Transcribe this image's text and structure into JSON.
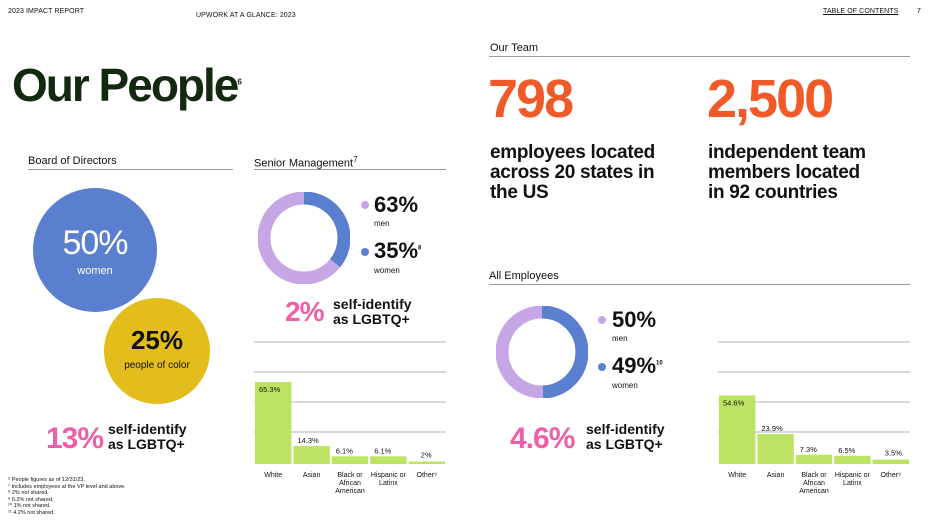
{
  "header": {
    "report": "2023 IMPACT REPORT",
    "section": "UPWORK AT A GLANCE: 2023",
    "toc": "TABLE OF CONTENTS",
    "page": "7"
  },
  "title": {
    "text": "Our People",
    "sup": "6"
  },
  "board": {
    "label": "Board of Directors",
    "women_pct": "50%",
    "women_label": "women",
    "poc_pct": "25%",
    "poc_label": "people of color",
    "lgbtq_pct": "13%",
    "lgbtq_line1": "self-identify",
    "lgbtq_line2": "as LGBTQ+"
  },
  "senior": {
    "label": "Senior Management",
    "label_sup": "7",
    "men_pct": "63%",
    "men_label": "men",
    "women_pct": "35%",
    "women_sup": "8",
    "women_label": "women",
    "lgbtq_pct": "2%",
    "lgbtq_line1": "self-identify",
    "lgbtq_line2": "as LGBTQ+"
  },
  "team": {
    "label": "Our Team",
    "employees_num": "798",
    "employees_line1": "employees located",
    "employees_line2": "across 20 states in",
    "employees_line3": "the US",
    "independent_num": "2,500",
    "independent_line1": "independent team",
    "independent_line2": "members located",
    "independent_line3": "in 92 countries"
  },
  "all": {
    "label": "All Employees",
    "men_pct": "50%",
    "men_label": "men",
    "women_pct": "49%",
    "women_sup": "10",
    "women_label": "women",
    "lgbtq_pct": "4.6%",
    "lgbtq_line1": "self-identify",
    "lgbtq_line2": "as LGBTQ+"
  },
  "colors": {
    "blue": "#5a7fce",
    "lavender": "#c7a6e6",
    "yellow": "#e3bd1b",
    "orange": "#f05a28",
    "pink": "#ee5fa8",
    "green": "#bde363",
    "dark_green": "#13290f"
  },
  "chart_data": [
    {
      "type": "bar",
      "categories": [
        "White",
        "Asian",
        "Black or African American",
        "Hispanic or Latinx",
        "Other⁹"
      ],
      "values": [
        65.3,
        14.3,
        6.1,
        6.1,
        2
      ],
      "labels": [
        "65.3%",
        "14.3%",
        "6.1%",
        "6.1%",
        "2%"
      ],
      "ylim": [
        0,
        70
      ]
    },
    {
      "type": "pie",
      "categories": [
        "men",
        "women"
      ],
      "values": [
        63,
        35
      ]
    },
    {
      "type": "pie",
      "categories": [
        "men",
        "women"
      ],
      "values": [
        50,
        49
      ]
    },
    {
      "type": "bar",
      "categories": [
        "White",
        "Asian",
        "Black or African American",
        "Hispanic or Latinx",
        "Other⁹"
      ],
      "values": [
        54.6,
        23.9,
        7.3,
        6.5,
        3.5
      ],
      "labels": [
        "54.6%",
        "23.9%",
        "7.3%",
        "6.5%",
        "3.5%"
      ],
      "ylim": [
        0,
        70
      ]
    }
  ],
  "footnotes": [
    "⁶ People figures as of 12/31/23.",
    "⁷ Includes employees at the VP level and above.",
    "⁸ 2% not shared.",
    "⁹ 6.2% not shared.",
    "¹⁰ 1% not shared.",
    "¹¹ 4.2% not shared."
  ]
}
